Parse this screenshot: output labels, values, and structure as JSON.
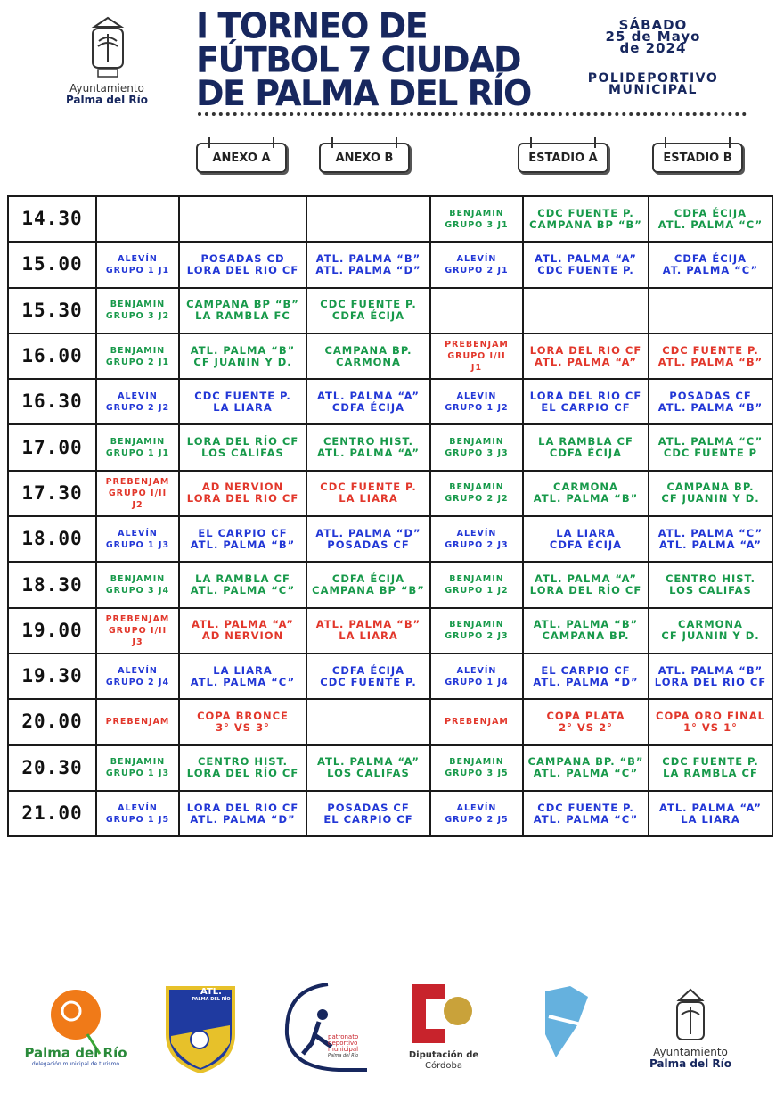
{
  "header": {
    "council": {
      "line1": "Ayuntamiento",
      "line2": "Palma del Río"
    },
    "title": [
      "I TORNEO DE",
      "FÚTBOL 7 CIUDAD",
      "DE PALMA DEL RÍO"
    ],
    "date": [
      "SÁBADO",
      "25 de Mayo",
      "de 2024"
    ],
    "venue": [
      "POLIDEPORTIVO",
      "MUNICIPAL"
    ]
  },
  "fields": [
    "ANEXO A",
    "ANEXO B",
    "ESTADIO A",
    "ESTADIO B"
  ],
  "palette": {
    "green": "#17994a",
    "blue": "#2237d6",
    "red": "#e2372b"
  },
  "rows": [
    {
      "time": "14.30",
      "cells": [
        [],
        [],
        [],
        [
          "BENJAMIN",
          "GRUPO 3 J1"
        ],
        [
          "CDC FUENTE P.",
          "CAMPANA BP “B”"
        ],
        [
          "CDFA ÉCIJA",
          "ATL. PALMA “C”"
        ]
      ],
      "colors": [
        null,
        null,
        null,
        "green",
        "green",
        "green"
      ]
    },
    {
      "time": "15.00",
      "cells": [
        [
          "ALEVÍN",
          "GRUPO 1 J1"
        ],
        [
          "POSADAS CD",
          "LORA DEL RIO CF"
        ],
        [
          "ATL. PALMA “B”",
          "ATL. PALMA “D”"
        ],
        [
          "ALEVÍN",
          "GRUPO 2 J1"
        ],
        [
          "ATL. PALMA “A”",
          "CDC FUENTE P."
        ],
        [
          "CDFA ÉCIJA",
          "AT. PALMA “C”"
        ]
      ],
      "colors": [
        "blue",
        "blue",
        "blue",
        "blue",
        "blue",
        "blue"
      ]
    },
    {
      "time": "15.30",
      "cells": [
        [
          "BENJAMIN",
          "GRUPO 3 J2"
        ],
        [
          "CAMPANA BP “B”",
          "LA RAMBLA FC"
        ],
        [
          "CDC FUENTE P.",
          "CDFA ÉCIJA"
        ],
        [],
        [],
        []
      ],
      "colors": [
        "green",
        "green",
        "green",
        null,
        null,
        null
      ]
    },
    {
      "time": "16.00",
      "cells": [
        [
          "BENJAMIN",
          "GRUPO 2 J1"
        ],
        [
          "ATL. PALMA “B”",
          "CF JUANIN Y D."
        ],
        [
          "CAMPANA BP.",
          "CARMONA"
        ],
        [
          "PREBENJAM",
          "GRUPO I/II",
          "J1"
        ],
        [
          "LORA DEL RIO CF",
          "ATL. PALMA “A”"
        ],
        [
          "CDC FUENTE P.",
          "ATL. PALMA “B”"
        ]
      ],
      "colors": [
        "green",
        "green",
        "green",
        "red",
        "red",
        "red"
      ]
    },
    {
      "time": "16.30",
      "cells": [
        [
          "ALEVÍN",
          "GRUPO 2 J2"
        ],
        [
          "CDC FUENTE P.",
          "LA LIARA"
        ],
        [
          "ATL. PALMA “A”",
          "CDFA ÉCIJA"
        ],
        [
          "ALEVÍN",
          "GRUPO 1 J2"
        ],
        [
          "LORA DEL RIO CF",
          "EL CARPIO CF"
        ],
        [
          "POSADAS CF",
          "ATL. PALMA “B”"
        ]
      ],
      "colors": [
        "blue",
        "blue",
        "blue",
        "blue",
        "blue",
        "blue"
      ]
    },
    {
      "time": "17.00",
      "cells": [
        [
          "BENJAMIN",
          "GRUPO 1 J1"
        ],
        [
          "LORA DEL RÍO CF",
          "LOS CALIFAS"
        ],
        [
          "CENTRO HIST.",
          "ATL. PALMA “A”"
        ],
        [
          "BENJAMIN",
          "GRUPO 3 J3"
        ],
        [
          "LA RAMBLA CF",
          "CDFA ÉCIJA"
        ],
        [
          "ATL. PALMA “C”",
          "CDC FUENTE P"
        ]
      ],
      "colors": [
        "green",
        "green",
        "green",
        "green",
        "green",
        "green"
      ]
    },
    {
      "time": "17.30",
      "cells": [
        [
          "PREBENJAM",
          "GRUPO I/II",
          "J2"
        ],
        [
          "AD NERVION",
          "LORA DEL RIO CF"
        ],
        [
          "CDC FUENTE P.",
          "LA LIARA"
        ],
        [
          "BENJAMIN",
          "GRUPO 2 J2"
        ],
        [
          "CARMONA",
          "ATL. PALMA “B”"
        ],
        [
          "CAMPANA BP.",
          "CF JUANIN Y D."
        ]
      ],
      "colors": [
        "red",
        "red",
        "red",
        "green",
        "green",
        "green"
      ]
    },
    {
      "time": "18.00",
      "cells": [
        [
          "ALEVÍN",
          "GRUPO 1 J3"
        ],
        [
          "EL CARPIO CF",
          "ATL. PALMA “B”"
        ],
        [
          "ATL. PALMA “D”",
          "POSADAS CF"
        ],
        [
          "ALEVÍN",
          "GRUPO 2 J3"
        ],
        [
          "LA LIARA",
          "CDFA ÉCIJA"
        ],
        [
          "ATL. PALMA “C”",
          "ATL. PALMA “A”"
        ]
      ],
      "colors": [
        "blue",
        "blue",
        "blue",
        "blue",
        "blue",
        "blue"
      ]
    },
    {
      "time": "18.30",
      "cells": [
        [
          "BENJAMIN",
          "GRUPO 3 J4"
        ],
        [
          "LA RAMBLA CF",
          "ATL. PALMA “C”"
        ],
        [
          "CDFA ÉCIJA",
          "CAMPANA BP “B”"
        ],
        [
          "BENJAMIN",
          "GRUPO 1 J2"
        ],
        [
          "ATL. PALMA “A”",
          "LORA DEL RÍO CF"
        ],
        [
          "CENTRO HIST.",
          "LOS CALIFAS"
        ]
      ],
      "colors": [
        "green",
        "green",
        "green",
        "green",
        "green",
        "green"
      ]
    },
    {
      "time": "19.00",
      "cells": [
        [
          "PREBENJAM",
          "GRUPO I/II",
          "J3"
        ],
        [
          "ATL. PALMA “A”",
          "AD NERVION"
        ],
        [
          "ATL. PALMA “B”",
          "LA LIARA"
        ],
        [
          "BENJAMIN",
          "GRUPO 2 J3"
        ],
        [
          "ATL. PALMA “B”",
          "CAMPANA BP."
        ],
        [
          "CARMONA",
          "CF JUANIN Y D."
        ]
      ],
      "colors": [
        "red",
        "red",
        "red",
        "green",
        "green",
        "green"
      ]
    },
    {
      "time": "19.30",
      "cells": [
        [
          "ALEVÍN",
          "GRUPO 2 J4"
        ],
        [
          "LA LIARA",
          "ATL. PALMA “C”"
        ],
        [
          "CDFA ÉCIJA",
          "CDC FUENTE P."
        ],
        [
          "ALEVÍN",
          "GRUPO 1 J4"
        ],
        [
          "EL CARPIO CF",
          "ATL. PALMA “D”"
        ],
        [
          "ATL. PALMA “B”",
          "LORA DEL RIO CF"
        ]
      ],
      "colors": [
        "blue",
        "blue",
        "blue",
        "blue",
        "blue",
        "blue"
      ]
    },
    {
      "time": "20.00",
      "cells": [
        [
          "PREBENJAM"
        ],
        [
          "COPA BRONCE",
          "3° VS 3°"
        ],
        [],
        [
          "PREBENJAM"
        ],
        [
          "COPA PLATA",
          "2° VS 2°"
        ],
        [
          "COPA ORO FINAL",
          "1° VS 1°"
        ]
      ],
      "colors": [
        "red",
        "red",
        null,
        "red",
        "red",
        "red"
      ]
    },
    {
      "time": "20.30",
      "cells": [
        [
          "BENJAMIN",
          "GRUPO 1 J3"
        ],
        [
          "CENTRO HIST.",
          "LORA DEL RÍO CF"
        ],
        [
          "ATL. PALMA “A”",
          "LOS CALIFAS"
        ],
        [
          "BENJAMIN",
          "GRUPO 3 J5"
        ],
        [
          "CAMPANA BP. “B”",
          "ATL. PALMA “C”"
        ],
        [
          "CDC FUENTE P.",
          "LA RAMBLA CF"
        ]
      ],
      "colors": [
        "green",
        "green",
        "green",
        "green",
        "green",
        "green"
      ]
    },
    {
      "time": "21.00",
      "cells": [
        [
          "ALEVÍN",
          "GRUPO 1 J5"
        ],
        [
          "LORA DEL RIO CF",
          "ATL. PALMA “D”"
        ],
        [
          "POSADAS CF",
          "EL CARPIO CF"
        ],
        [
          "ALEVÍN",
          "GRUPO 2 J5"
        ],
        [
          "CDC FUENTE P.",
          "ATL. PALMA “C”"
        ],
        [
          "ATL. PALMA “A”",
          "LA LIARA"
        ]
      ],
      "colors": [
        "blue",
        "blue",
        "blue",
        "blue",
        "blue",
        "blue"
      ]
    }
  ],
  "sponsors": {
    "tourism": {
      "name": "Palma del Río",
      "sub": "delegación municipal de turismo"
    },
    "club": {
      "name": "ATL.",
      "sub": "PALMA DEL RÍO"
    },
    "sports": {
      "line1": "patronato",
      "line2": "deportivo",
      "line3": "municipal",
      "line4": "Palma del Río"
    },
    "province": {
      "line1": "Diputación de",
      "line2": "Córdoba"
    },
    "council": {
      "line1": "Ayuntamiento",
      "line2": "Palma del Río"
    }
  }
}
